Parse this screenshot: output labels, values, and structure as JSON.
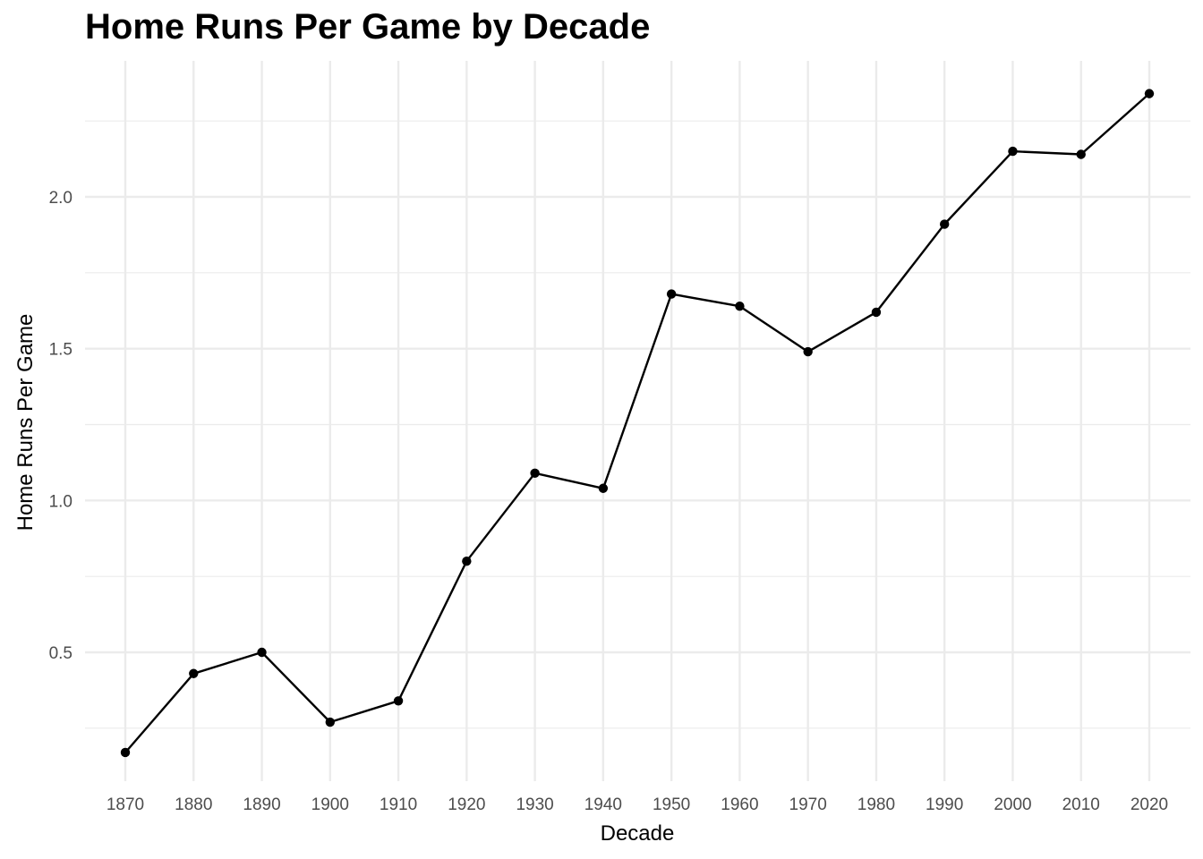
{
  "chart_data": {
    "type": "line",
    "title": "Home Runs Per Game by Decade",
    "xlabel": "Decade",
    "ylabel": "Home Runs Per Game",
    "x": [
      1870,
      1880,
      1890,
      1900,
      1910,
      1920,
      1930,
      1940,
      1950,
      1960,
      1970,
      1980,
      1990,
      2000,
      2010,
      2020
    ],
    "series": [
      {
        "values": [
          0.17,
          0.43,
          0.5,
          0.27,
          0.34,
          0.8,
          1.09,
          1.04,
          1.68,
          1.64,
          1.49,
          1.62,
          1.91,
          2.15,
          2.14,
          2.34
        ]
      }
    ],
    "x_ticks": [
      "1870",
      "1880",
      "1890",
      "1900",
      "1910",
      "1920",
      "1930",
      "1940",
      "1950",
      "1960",
      "1970",
      "1980",
      "1990",
      "2000",
      "2010",
      "2020"
    ],
    "y_ticks": [
      "0.5",
      "1.0",
      "1.5",
      "2.0"
    ],
    "ylim": [
      0.1,
      2.4
    ],
    "grid": true,
    "colors": {
      "line": "#000000",
      "point": "#000000",
      "grid": "#ebebeb"
    }
  }
}
